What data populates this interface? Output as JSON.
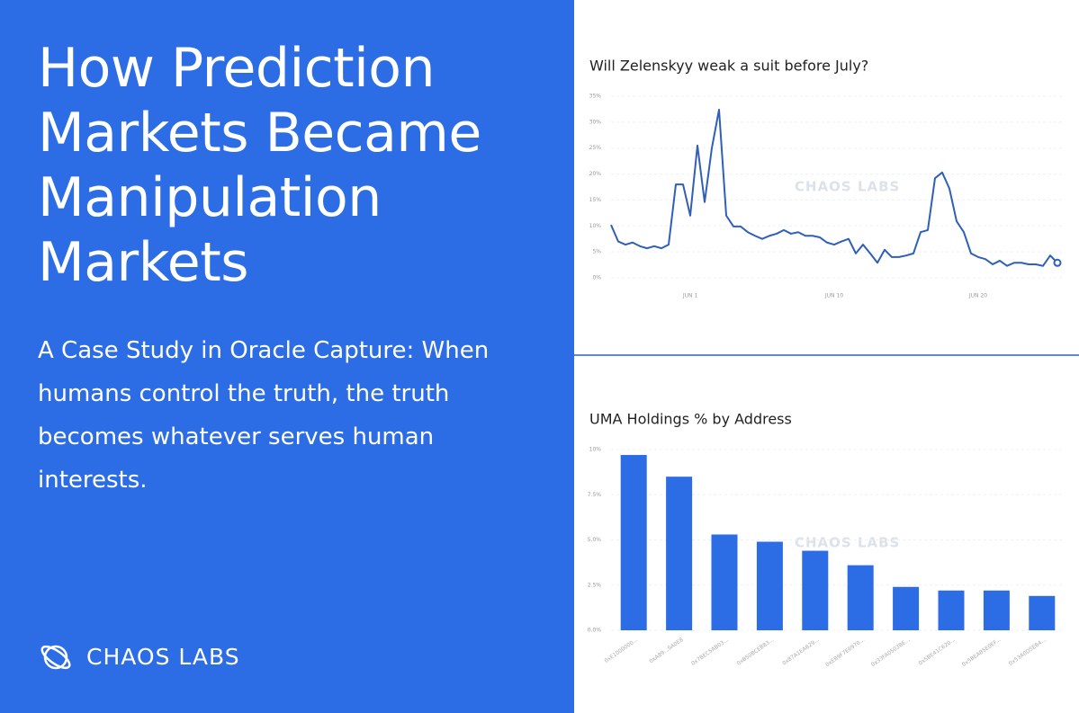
{
  "panel": {
    "title": "How Prediction Markets Became Manipulation Markets",
    "subtitle": "A Case Study in Oracle Capture: When humans control the truth, the truth becomes whatever serves human interests.",
    "brand": "CHAOS LABS"
  },
  "chart_data": [
    {
      "type": "line",
      "title": "Will Zelenskyy weak a suit before July?",
      "watermark": "CHAOS LABS",
      "color": "#2f5fb8",
      "categories": [
        null,
        null,
        null,
        null,
        null,
        null,
        null,
        null,
        null,
        null,
        null,
        "JUN 1",
        null,
        null,
        null,
        null,
        null,
        null,
        null,
        null,
        null,
        null,
        null,
        null,
        null,
        null,
        null,
        null,
        null,
        null,
        null,
        "JUN 10",
        null,
        null,
        null,
        null,
        null,
        null,
        null,
        null,
        null,
        null,
        null,
        null,
        null,
        null,
        null,
        null,
        null,
        null,
        null,
        "JUN 20",
        null,
        null,
        null,
        null,
        null,
        null,
        null,
        null,
        null,
        null,
        null
      ],
      "values": [
        10.2,
        7,
        6.4,
        6.8,
        6.1,
        5.7,
        6.1,
        5.7,
        6.4,
        18,
        18,
        12,
        25.5,
        14.6,
        25,
        32.4,
        12,
        9.9,
        9.9,
        8.8,
        8.1,
        7.5,
        8.1,
        8.5,
        9.2,
        8.5,
        8.8,
        8.1,
        8.1,
        7.8,
        6.8,
        6.4,
        7,
        7.5,
        4.7,
        6.4,
        4.7,
        2.9,
        5.4,
        4,
        4,
        4.3,
        4.7,
        8.8,
        9.2,
        19.2,
        20.3,
        17.2,
        10.9,
        8.8,
        4.7,
        4,
        3.6,
        2.6,
        3.3,
        2.3,
        2.9,
        2.9,
        2.6,
        2.6,
        2.3,
        4.3,
        2.9
      ],
      "ylim": [
        0,
        35
      ],
      "yticks": [
        {
          "value": 0,
          "label": "0%"
        },
        {
          "value": 5,
          "label": "5%"
        },
        {
          "value": 10,
          "label": "10%"
        },
        {
          "value": 15,
          "label": "15%"
        },
        {
          "value": 20,
          "label": "20%"
        },
        {
          "value": 25,
          "label": "25%"
        },
        {
          "value": 30,
          "label": "30%"
        },
        {
          "value": 35,
          "label": "35%"
        }
      ],
      "grid": true
    },
    {
      "type": "bar",
      "title": "UMA Holdings % by Address",
      "watermark": "CHAOS LABS",
      "color": "#2c6de6",
      "categories": [
        "0xE1000000...",
        "0xA89...9A0E8",
        "0x7BEC5AB03...",
        "0xB50BCEB83...",
        "0x87A1EAB29...",
        "0xEB9F7E6970...",
        "0x33FA0503BE...",
        "0x5BE41C620...",
        "0x5BEAB5E0EF...",
        "0x53A0D5EB4..."
      ],
      "values": [
        9.7,
        8.5,
        5.3,
        4.9,
        4.4,
        3.6,
        2.4,
        2.2,
        2.2,
        1.9
      ],
      "ylim": [
        0,
        10
      ],
      "yticks": [
        {
          "value": 0,
          "label": "0.0%"
        },
        {
          "value": 2.5,
          "label": "2.5%"
        },
        {
          "value": 5,
          "label": "5.0%"
        },
        {
          "value": 7.5,
          "label": "7.5%"
        },
        {
          "value": 10,
          "label": "10%"
        }
      ],
      "grid": true
    }
  ]
}
